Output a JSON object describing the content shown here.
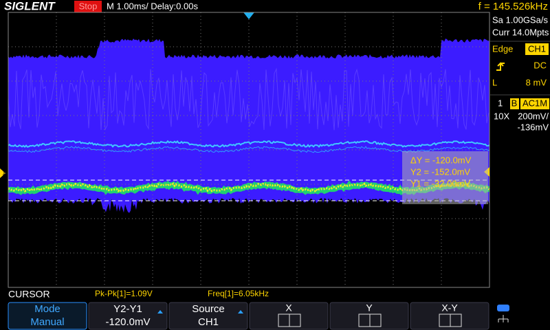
{
  "header": {
    "brand": "SIGLENT",
    "status": "Stop",
    "timebase": "M 1.00ms/ Delay:0.00s",
    "frequency": "f = 145.526kHz"
  },
  "acquisition": {
    "sample_rate": "Sa 1.00GSa/s",
    "memory": "Curr 14.0Mpts"
  },
  "trigger": {
    "type": "Edge",
    "source": "CH1",
    "coupling": "DC",
    "level_label": "L",
    "level": "8 mV"
  },
  "channel": {
    "number": "1",
    "bandwidth_limit": "B",
    "coupling": "AC1M",
    "probe": "10X",
    "scale": "200mV/",
    "offset": "-136mV"
  },
  "channel_marker": "1",
  "cursor_readout": {
    "delta_y": "ΔY = -120.0mV",
    "y2": "Y2 = -152.0mV",
    "y1": "Y1 = -32.00mV"
  },
  "measurements": {
    "mode": "CURSOR",
    "pk_pk": "Pk-Pk[1]=1.09V",
    "freq": "Freq[1]=6.05kHz"
  },
  "menu": [
    {
      "label": "Mode",
      "value": "Manual"
    },
    {
      "label": "Y2-Y1",
      "value": "-120.0mV"
    },
    {
      "label": "Source",
      "value": "CH1"
    },
    {
      "label": "X"
    },
    {
      "label": "Y"
    },
    {
      "label": "X-Y"
    }
  ]
}
